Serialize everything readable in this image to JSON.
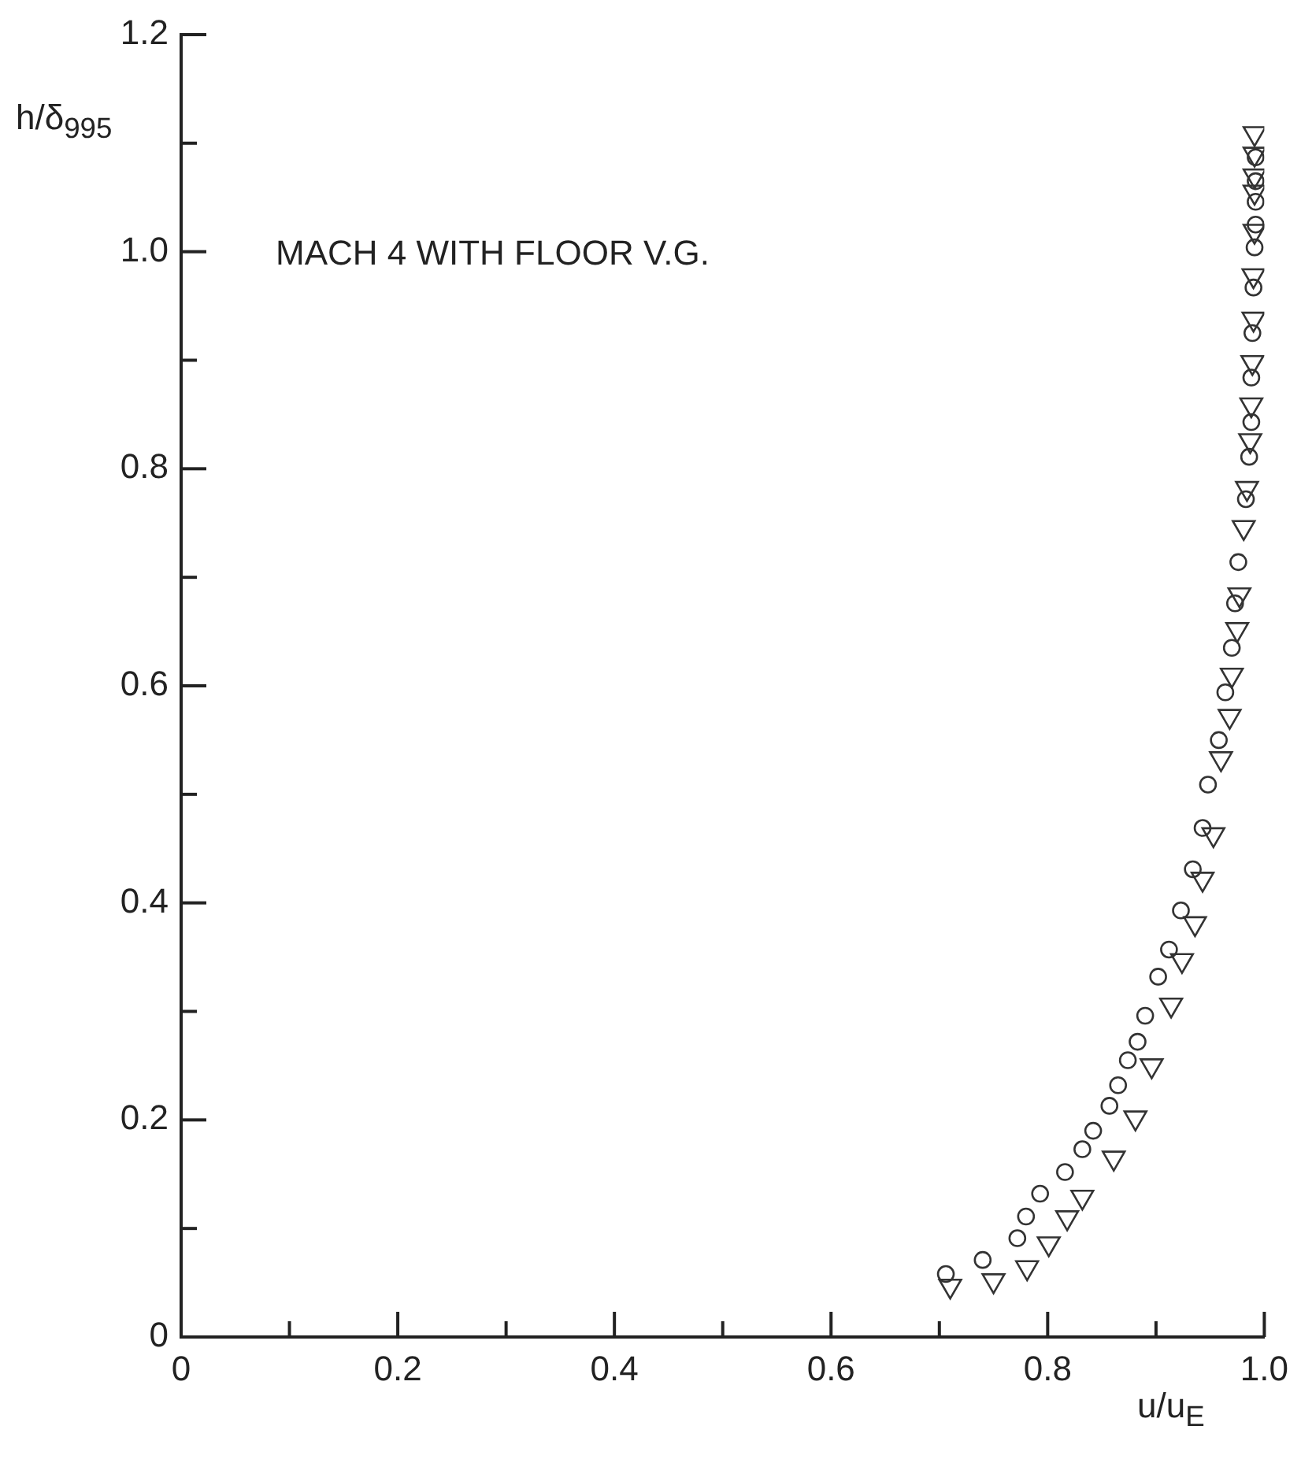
{
  "chart_data": {
    "type": "scatter",
    "xlabel": "u/u$_{E}$",
    "ylabel": "h/δ$_{995}$",
    "annotations": [
      "MACH 4 WITH FLOOR V.G."
    ],
    "xlim": [
      0,
      1.0
    ],
    "ylim": [
      0,
      1.2
    ],
    "xticks": [
      0,
      {
        "value": 0.1,
        "label": null
      },
      0.2,
      {
        "value": 0.3,
        "label": null
      },
      0.4,
      {
        "value": 0.5,
        "label": null
      },
      0.6,
      {
        "value": 0.7,
        "label": null
      },
      0.8,
      {
        "value": 0.9,
        "label": null
      },
      {
        "value": 1,
        "label": "1.0"
      }
    ],
    "yticks": [
      0,
      {
        "value": 0.1,
        "label": null
      },
      0.2,
      {
        "value": 0.3,
        "label": null
      },
      0.4,
      {
        "value": 0.5,
        "label": null
      },
      0.6,
      {
        "value": 0.7,
        "label": null
      },
      0.8,
      {
        "value": 0.9,
        "label": null
      },
      {
        "value": 1,
        "label": "1.0"
      },
      {
        "value": 1.1,
        "label": null
      },
      1.2
    ],
    "series": [
      {
        "color": "#333333",
        "marker": "circle",
        "x": [
          0.706,
          0.74,
          0.772,
          0.78,
          0.793,
          0.816,
          0.832,
          0.842,
          0.857,
          0.865,
          0.874,
          0.883,
          0.89,
          0.902,
          0.912,
          0.923,
          0.934,
          0.943,
          0.948,
          0.958,
          0.964,
          0.97,
          0.973,
          0.976,
          0.983,
          0.986,
          0.988,
          0.988,
          0.989,
          0.99,
          0.991,
          0.992,
          0.992,
          0.992,
          0.992
        ],
        "values": [
          0.058,
          0.071,
          0.091,
          0.111,
          0.132,
          0.152,
          0.173,
          0.19,
          0.213,
          0.232,
          0.255,
          0.272,
          0.296,
          0.332,
          0.357,
          0.393,
          0.431,
          0.469,
          0.509,
          0.55,
          0.594,
          0.635,
          0.676,
          0.714,
          0.772,
          0.811,
          0.843,
          0.884,
          0.925,
          0.967,
          1.004,
          1.025,
          1.046,
          1.065,
          1.087
        ]
      },
      {
        "color": "#333333",
        "marker": "triangle",
        "x": [
          0.71,
          0.75,
          0.781,
          0.801,
          0.818,
          0.832,
          0.861,
          0.881,
          0.896,
          0.914,
          0.924,
          0.936,
          0.943,
          0.953,
          0.96,
          0.968,
          0.97,
          0.975,
          0.977,
          0.981,
          0.984,
          0.987,
          0.988,
          0.989,
          0.99,
          0.99,
          0.991,
          0.991,
          0.991,
          0.991,
          0.991
        ],
        "values": [
          0.047,
          0.052,
          0.064,
          0.086,
          0.11,
          0.129,
          0.165,
          0.202,
          0.25,
          0.306,
          0.347,
          0.381,
          0.422,
          0.463,
          0.533,
          0.572,
          0.61,
          0.652,
          0.684,
          0.746,
          0.782,
          0.826,
          0.859,
          0.898,
          0.938,
          0.978,
          1.019,
          1.055,
          1.07,
          1.09,
          1.109
        ]
      }
    ]
  }
}
